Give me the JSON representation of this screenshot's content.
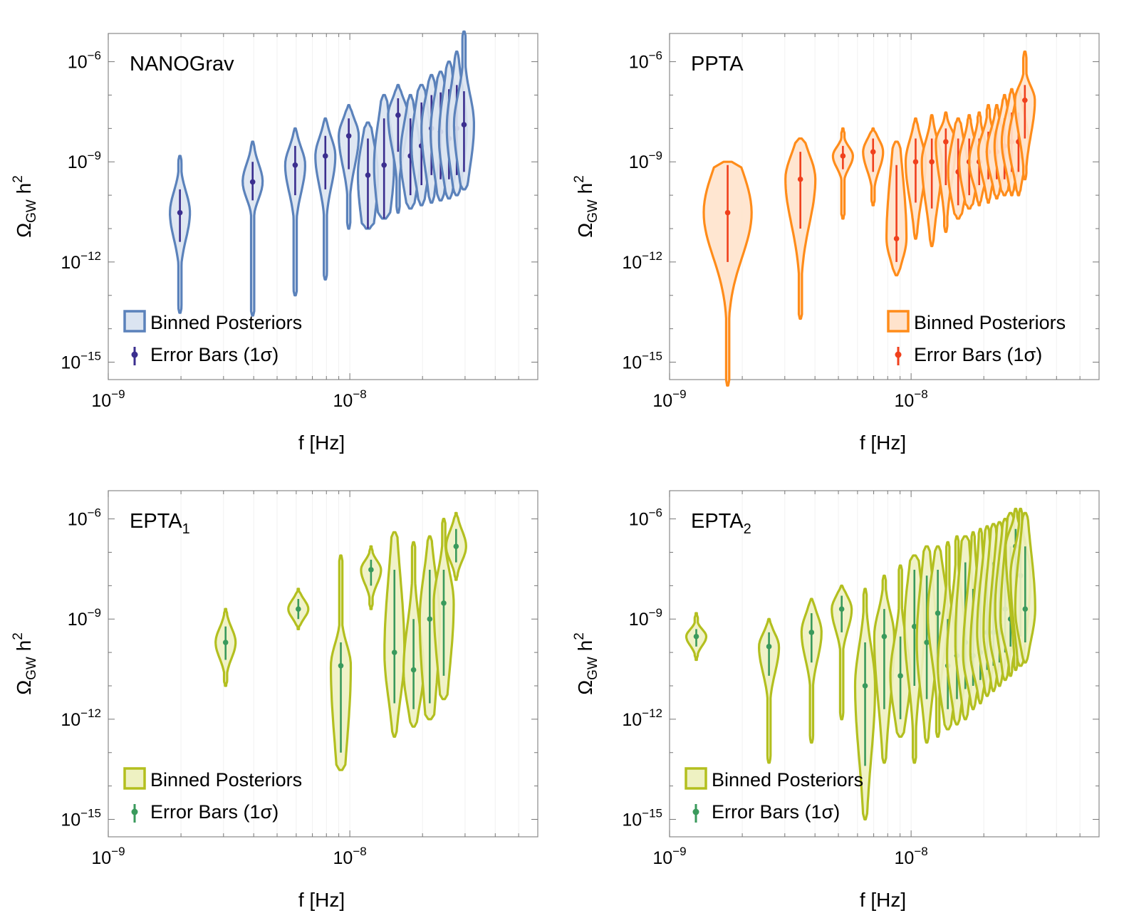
{
  "chart_data": [
    {
      "type": "violin",
      "panel_label": "NANOGrav",
      "xlabel": "f [Hz]",
      "ylabel": "Ω_GW h²",
      "x_scale": "log",
      "y_scale": "log",
      "x_range": [
        1e-09,
        6e-08
      ],
      "y_range": [
        3e-16,
        7e-06
      ],
      "x_ticks": [
        {
          "value": 1e-09,
          "base": "10",
          "exp": "−9"
        },
        {
          "value": 1e-08,
          "base": "10",
          "exp": "−8"
        }
      ],
      "y_ticks": [
        {
          "value": 1e-15,
          "base": "10",
          "exp": "−15"
        },
        {
          "value": 1e-12,
          "base": "10",
          "exp": "−12"
        },
        {
          "value": 1e-09,
          "base": "10",
          "exp": "−9"
        },
        {
          "value": 1e-06,
          "base": "10",
          "exp": "−6"
        }
      ],
      "legend": {
        "position": "bottom-left",
        "posterior_label": "Binned Posteriors",
        "errorbar_label": "Error Bars (1σ)"
      },
      "colors": {
        "stroke": "#5b82bb",
        "fill": "#dbe4f1",
        "errorbar": "#3b2f8f"
      },
      "bins": [
        {
          "f": 1.98e-09,
          "median": 3e-11,
          "err_low": 4e-12,
          "err_high": 1.5e-10,
          "min": 3e-14,
          "max": 1.5e-09
        },
        {
          "f": 3.96e-09,
          "median": 2.5e-10,
          "err_low": 7e-11,
          "err_high": 1e-09,
          "min": 2.5e-14,
          "max": 4e-09
        },
        {
          "f": 5.94e-09,
          "median": 8e-10,
          "err_low": 1e-10,
          "err_high": 3e-09,
          "min": 1e-13,
          "max": 1e-08
        },
        {
          "f": 7.92e-09,
          "median": 1.5e-09,
          "err_low": 1.5e-10,
          "err_high": 6e-09,
          "min": 3e-13,
          "max": 2e-08
        },
        {
          "f": 9.9e-09,
          "median": 6e-09,
          "err_low": 6e-10,
          "err_high": 2e-08,
          "min": 1e-11,
          "max": 5e-08
        },
        {
          "f": 1.188e-08,
          "median": 4e-10,
          "err_low": 1e-11,
          "err_high": 5e-09,
          "min": 1e-11,
          "max": 1.5e-08
        },
        {
          "f": 1.386e-08,
          "median": 8e-10,
          "err_low": 2e-11,
          "err_high": 2e-08,
          "min": 2e-11,
          "max": 1e-07
        },
        {
          "f": 1.584e-08,
          "median": 2.5e-08,
          "err_low": 2e-09,
          "err_high": 8e-08,
          "min": 3e-11,
          "max": 2e-07
        },
        {
          "f": 1.782e-08,
          "median": 1.5e-09,
          "err_low": 1e-10,
          "err_high": 2e-08,
          "min": 4e-11,
          "max": 1e-07
        },
        {
          "f": 1.98e-08,
          "median": 3e-09,
          "err_low": 2e-10,
          "err_high": 6e-08,
          "min": 5e-11,
          "max": 2e-07
        },
        {
          "f": 2.178e-08,
          "median": 1e-08,
          "err_low": 4e-10,
          "err_high": 1e-07,
          "min": 6e-11,
          "max": 4e-07
        },
        {
          "f": 2.376e-08,
          "median": 8e-09,
          "err_low": 3e-10,
          "err_high": 1.2e-07,
          "min": 7e-11,
          "max": 5e-07
        },
        {
          "f": 2.574e-08,
          "median": 5e-09,
          "err_low": 3e-10,
          "err_high": 1.5e-07,
          "min": 8e-11,
          "max": 1e-06
        },
        {
          "f": 2.772e-08,
          "median": 1e-08,
          "err_low": 4e-10,
          "err_high": 2e-07,
          "min": 1e-10,
          "max": 2e-06
        },
        {
          "f": 2.97e-08,
          "median": 1.3e-08,
          "err_low": 5e-10,
          "err_high": 1.3e-07,
          "min": 1.5e-10,
          "max": 8e-06
        }
      ]
    },
    {
      "type": "violin",
      "panel_label": "PPTA",
      "xlabel": "f [Hz]",
      "ylabel": "Ω_GW h²",
      "x_scale": "log",
      "y_scale": "log",
      "x_range": [
        1e-09,
        6e-08
      ],
      "y_range": [
        3e-16,
        7e-06
      ],
      "x_ticks": [
        {
          "value": 1e-09,
          "base": "10",
          "exp": "−9"
        },
        {
          "value": 1e-08,
          "base": "10",
          "exp": "−8"
        }
      ],
      "y_ticks": [
        {
          "value": 1e-15,
          "base": "10",
          "exp": "−15"
        },
        {
          "value": 1e-12,
          "base": "10",
          "exp": "−12"
        },
        {
          "value": 1e-09,
          "base": "10",
          "exp": "−9"
        },
        {
          "value": 1e-06,
          "base": "10",
          "exp": "−6"
        }
      ],
      "legend": {
        "position": "bottom-right",
        "posterior_label": "Binned Posteriors",
        "errorbar_label": "Error Bars (1σ)"
      },
      "colors": {
        "stroke": "#ff8c1a",
        "fill": "#ffe3cc",
        "errorbar": "#f0401c"
      },
      "bins": [
        {
          "f": 1.74e-09,
          "median": 3e-11,
          "err_low": 1e-12,
          "err_high": 8e-10,
          "min": 2e-16,
          "max": 1e-09,
          "max_width_scale": 2.4
        },
        {
          "f": 3.48e-09,
          "median": 3e-10,
          "err_low": 1e-11,
          "err_high": 2e-09,
          "min": 2e-14,
          "max": 5e-09,
          "max_width_scale": 1.5
        },
        {
          "f": 5.22e-09,
          "median": 1.5e-09,
          "err_low": 6e-10,
          "err_high": 3e-09,
          "min": 2e-11,
          "max": 1e-08
        },
        {
          "f": 6.96e-09,
          "median": 2e-09,
          "err_low": 5e-10,
          "err_high": 5e-09,
          "min": 5e-11,
          "max": 1e-08
        },
        {
          "f": 8.7e-09,
          "median": 5e-12,
          "err_low": 1e-12,
          "err_high": 8e-10,
          "min": 4e-13,
          "max": 4e-09
        },
        {
          "f": 1.044e-08,
          "median": 1e-09,
          "err_low": 6e-11,
          "err_high": 5e-09,
          "min": 5e-12,
          "max": 2e-08
        },
        {
          "f": 1.218e-08,
          "median": 1e-09,
          "err_low": 4e-11,
          "err_high": 5e-09,
          "min": 3e-12,
          "max": 2.5e-08
        },
        {
          "f": 1.392e-08,
          "median": 4e-09,
          "err_low": 2e-10,
          "err_high": 1e-08,
          "min": 8e-12,
          "max": 3e-08
        },
        {
          "f": 1.566e-08,
          "median": 5e-10,
          "err_low": 5e-11,
          "err_high": 5e-09,
          "min": 2e-11,
          "max": 2e-08
        },
        {
          "f": 1.74e-08,
          "median": 1e-09,
          "err_low": 1e-10,
          "err_high": 5e-09,
          "min": 4e-11,
          "max": 2.5e-08
        },
        {
          "f": 1.914e-08,
          "median": 1e-09,
          "err_low": 2e-10,
          "err_high": 5e-09,
          "min": 5e-11,
          "max": 3e-08
        },
        {
          "f": 2.088e-08,
          "median": 2e-09,
          "err_low": 3e-10,
          "err_high": 8e-09,
          "min": 6e-11,
          "max": 5e-08
        },
        {
          "f": 2.262e-08,
          "median": 2e-09,
          "err_low": 3e-10,
          "err_high": 1e-08,
          "min": 8e-11,
          "max": 5e-08
        },
        {
          "f": 2.436e-08,
          "median": 3e-09,
          "err_low": 3e-10,
          "err_high": 2e-08,
          "min": 1e-10,
          "max": 1e-07
        },
        {
          "f": 2.61e-08,
          "median": 4e-09,
          "err_low": 5e-10,
          "err_high": 3e-08,
          "min": 1e-10,
          "max": 1.5e-07
        },
        {
          "f": 2.784e-08,
          "median": 4e-09,
          "err_low": 5e-10,
          "err_high": 3e-08,
          "min": 1e-10,
          "max": 1.5e-07
        },
        {
          "f": 2.958e-08,
          "median": 7e-08,
          "err_low": 5e-09,
          "err_high": 2e-07,
          "min": 3e-10,
          "max": 2e-06
        }
      ]
    },
    {
      "type": "violin",
      "panel_label": "EPTA",
      "panel_label_sub": "1",
      "xlabel": "f [Hz]",
      "ylabel": "Ω_GW h²",
      "x_scale": "log",
      "y_scale": "log",
      "x_range": [
        1e-09,
        6e-08
      ],
      "y_range": [
        3e-16,
        7e-06
      ],
      "x_ticks": [
        {
          "value": 1e-09,
          "base": "10",
          "exp": "−9"
        },
        {
          "value": 1e-08,
          "base": "10",
          "exp": "−8"
        }
      ],
      "y_ticks": [
        {
          "value": 1e-15,
          "base": "10",
          "exp": "−15"
        },
        {
          "value": 1e-12,
          "base": "10",
          "exp": "−12"
        },
        {
          "value": 1e-09,
          "base": "10",
          "exp": "−9"
        },
        {
          "value": 1e-06,
          "base": "10",
          "exp": "−6"
        }
      ],
      "legend": {
        "position": "bottom-left",
        "posterior_label": "Binned Posteriors",
        "errorbar_label": "Error Bars (1σ)"
      },
      "colors": {
        "stroke": "#b3bf1f",
        "fill": "#eef1c2",
        "errorbar": "#3a9a5c"
      },
      "bins": [
        {
          "f": 3.06e-09,
          "median": 2e-10,
          "err_low": 6e-11,
          "err_high": 6e-10,
          "min": 1e-11,
          "max": 2e-09
        },
        {
          "f": 6.12e-09,
          "median": 2e-09,
          "err_low": 1e-09,
          "err_high": 4e-09,
          "min": 5e-10,
          "max": 8e-09
        },
        {
          "f": 9.18e-09,
          "median": 4e-11,
          "err_low": 1e-13,
          "err_high": 2e-10,
          "min": 3e-14,
          "max": 8e-08
        },
        {
          "f": 1.224e-08,
          "median": 3e-08,
          "err_low": 1e-08,
          "err_high": 6e-08,
          "min": 2e-09,
          "max": 1.5e-07
        },
        {
          "f": 1.53e-08,
          "median": 1e-10,
          "err_low": 3e-12,
          "err_high": 3e-08,
          "min": 3e-13,
          "max": 4e-07
        },
        {
          "f": 1.836e-08,
          "median": 3e-11,
          "err_low": 2e-12,
          "err_high": 1e-09,
          "min": 6e-13,
          "max": 2e-07
        },
        {
          "f": 2.142e-08,
          "median": 1e-09,
          "err_low": 3e-12,
          "err_high": 3e-08,
          "min": 1e-12,
          "max": 3e-07
        },
        {
          "f": 2.448e-08,
          "median": 3e-09,
          "err_low": 2e-11,
          "err_high": 3e-08,
          "min": 4e-12,
          "max": 1e-06
        },
        {
          "f": 2.754e-08,
          "median": 1.5e-07,
          "err_low": 5e-08,
          "err_high": 5e-07,
          "min": 1.5e-08,
          "max": 1.5e-06
        }
      ]
    },
    {
      "type": "violin",
      "panel_label": "EPTA",
      "panel_label_sub": "2",
      "xlabel": "f [Hz]",
      "ylabel": "Ω_GW h²",
      "x_scale": "log",
      "y_scale": "log",
      "x_range": [
        1e-09,
        6e-08
      ],
      "y_range": [
        3e-16,
        7e-06
      ],
      "x_ticks": [
        {
          "value": 1e-09,
          "base": "10",
          "exp": "−9"
        },
        {
          "value": 1e-08,
          "base": "10",
          "exp": "−8"
        }
      ],
      "y_ticks": [
        {
          "value": 1e-15,
          "base": "10",
          "exp": "−15"
        },
        {
          "value": 1e-12,
          "base": "10",
          "exp": "−12"
        },
        {
          "value": 1e-09,
          "base": "10",
          "exp": "−9"
        },
        {
          "value": 1e-06,
          "base": "10",
          "exp": "−6"
        }
      ],
      "legend": {
        "position": "bottom-left",
        "posterior_label": "Binned Posteriors",
        "errorbar_label": "Error Bars (1σ)"
      },
      "colors": {
        "stroke": "#b3bf1f",
        "fill": "#eef1c2",
        "errorbar": "#3a9a5c"
      },
      "bins": [
        {
          "f": 1.29e-09,
          "median": 3e-10,
          "err_low": 1.5e-10,
          "err_high": 5e-10,
          "min": 6e-11,
          "max": 1.5e-09
        },
        {
          "f": 2.58e-09,
          "median": 1.5e-10,
          "err_low": 2e-11,
          "err_high": 4e-10,
          "min": 5e-14,
          "max": 1e-09
        },
        {
          "f": 3.87e-09,
          "median": 4e-10,
          "err_low": 5e-11,
          "err_high": 1.5e-09,
          "min": 2e-13,
          "max": 4e-09
        },
        {
          "f": 5.16e-09,
          "median": 2e-09,
          "err_low": 4e-10,
          "err_high": 5e-09,
          "min": 1e-12,
          "max": 1e-08
        },
        {
          "f": 6.45e-09,
          "median": 1e-11,
          "err_low": 4e-14,
          "err_high": 2e-10,
          "min": 1e-15,
          "max": 8e-09
        },
        {
          "f": 7.74e-09,
          "median": 3e-10,
          "err_low": 2e-12,
          "err_high": 2e-09,
          "min": 5e-14,
          "max": 2e-08
        },
        {
          "f": 9.03e-09,
          "median": 2e-11,
          "err_low": 1e-12,
          "err_high": 3e-10,
          "min": 3e-13,
          "max": 4e-08
        },
        {
          "f": 1.032e-08,
          "median": 6e-10,
          "err_low": 1e-11,
          "err_high": 3e-08,
          "min": 5e-14,
          "max": 8e-08
        },
        {
          "f": 1.161e-08,
          "median": 2e-10,
          "err_low": 4e-12,
          "err_high": 2e-08,
          "min": 2e-13,
          "max": 1.5e-07
        },
        {
          "f": 1.29e-08,
          "median": 1.5e-09,
          "err_low": 5e-11,
          "err_high": 3e-08,
          "min": 3e-13,
          "max": 1.5e-07
        },
        {
          "f": 1.419e-08,
          "median": 4e-11,
          "err_low": 2e-12,
          "err_high": 1e-09,
          "min": 5e-13,
          "max": 2e-07
        },
        {
          "f": 1.548e-08,
          "median": 8e-11,
          "err_low": 4e-12,
          "err_high": 3e-09,
          "min": 7e-13,
          "max": 3e-07
        },
        {
          "f": 1.677e-08,
          "median": 2e-10,
          "err_low": 8e-12,
          "err_high": 5e-08,
          "min": 1e-12,
          "max": 3e-07
        },
        {
          "f": 1.806e-08,
          "median": 8e-11,
          "err_low": 1e-11,
          "err_high": 8e-09,
          "min": 2e-12,
          "max": 4e-07
        },
        {
          "f": 1.935e-08,
          "median": 1e-10,
          "err_low": 1.5e-11,
          "err_high": 1e-08,
          "min": 3e-12,
          "max": 5e-07
        },
        {
          "f": 2.064e-08,
          "median": 4e-10,
          "err_low": 3e-11,
          "err_high": 3e-08,
          "min": 5e-12,
          "max": 6e-07
        },
        {
          "f": 2.193e-08,
          "median": 4e-10,
          "err_low": 4e-11,
          "err_high": 5e-08,
          "min": 7e-12,
          "max": 7e-07
        },
        {
          "f": 2.322e-08,
          "median": 4e-10,
          "err_low": 5e-11,
          "err_high": 5e-08,
          "min": 1e-11,
          "max": 8e-07
        },
        {
          "f": 2.451e-08,
          "median": 2e-09,
          "err_low": 1e-10,
          "err_high": 1e-07,
          "min": 1.5e-11,
          "max": 1e-06
        },
        {
          "f": 2.58e-08,
          "median": 1e-09,
          "err_low": 1.5e-10,
          "err_high": 1.5e-07,
          "min": 2e-11,
          "max": 1.5e-06
        },
        {
          "f": 2.709e-08,
          "median": 1.5e-07,
          "err_low": 2e-09,
          "err_high": 5e-07,
          "min": 3e-11,
          "max": 2e-06
        },
        {
          "f": 2.838e-08,
          "median": 2e-08,
          "err_low": 3e-10,
          "err_high": 1.5e-07,
          "min": 4e-11,
          "max": 2e-06
        },
        {
          "f": 2.967e-08,
          "median": 2e-09,
          "err_low": 2e-10,
          "err_high": 1.5e-07,
          "min": 5e-11,
          "max": 1.5e-06
        }
      ]
    }
  ]
}
